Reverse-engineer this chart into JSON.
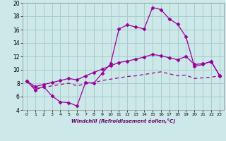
{
  "xlabel": "Windchill (Refroidissement éolien,°C)",
  "background_color": "#cce8e8",
  "grid_color": "#aacccc",
  "line_color": "#990099",
  "xlim": [
    -0.5,
    23.5
  ],
  "ylim": [
    4,
    20
  ],
  "xticks": [
    0,
    1,
    2,
    3,
    4,
    5,
    6,
    7,
    8,
    9,
    10,
    11,
    12,
    13,
    14,
    15,
    16,
    17,
    18,
    19,
    20,
    21,
    22,
    23
  ],
  "yticks": [
    4,
    6,
    8,
    10,
    12,
    14,
    16,
    18,
    20
  ],
  "line1_x": [
    0,
    1,
    2,
    3,
    4,
    5,
    6,
    7,
    8,
    9,
    10,
    11,
    12,
    13,
    14,
    15,
    16,
    17,
    18,
    19,
    20,
    21,
    22,
    23
  ],
  "line1_y": [
    8.3,
    7.0,
    7.5,
    6.1,
    5.2,
    5.1,
    4.6,
    8.1,
    8.0,
    9.5,
    10.9,
    16.1,
    16.7,
    16.4,
    16.1,
    19.3,
    19.0,
    17.6,
    16.8,
    14.9,
    10.5,
    10.8,
    11.3,
    9.1
  ],
  "line2_x": [
    0,
    1,
    2,
    3,
    4,
    5,
    6,
    7,
    8,
    9,
    10,
    11,
    12,
    13,
    14,
    15,
    16,
    17,
    18,
    19,
    20,
    21,
    22,
    23
  ],
  "line2_y": [
    8.3,
    7.5,
    7.8,
    8.1,
    8.4,
    8.7,
    8.5,
    9.1,
    9.6,
    10.1,
    10.6,
    11.1,
    11.3,
    11.6,
    11.9,
    12.3,
    12.1,
    11.8,
    11.5,
    12.0,
    10.8,
    10.9,
    11.2,
    9.2
  ],
  "line3_x": [
    0,
    1,
    2,
    3,
    4,
    5,
    6,
    7,
    8,
    9,
    10,
    11,
    12,
    13,
    14,
    15,
    16,
    17,
    18,
    19,
    20,
    21,
    22,
    23
  ],
  "line3_y": [
    8.3,
    7.2,
    7.4,
    7.6,
    7.8,
    8.0,
    7.6,
    7.9,
    8.1,
    8.4,
    8.6,
    8.8,
    9.0,
    9.1,
    9.3,
    9.5,
    9.7,
    9.4,
    9.1,
    9.2,
    8.7,
    8.8,
    8.9,
    9.1
  ]
}
